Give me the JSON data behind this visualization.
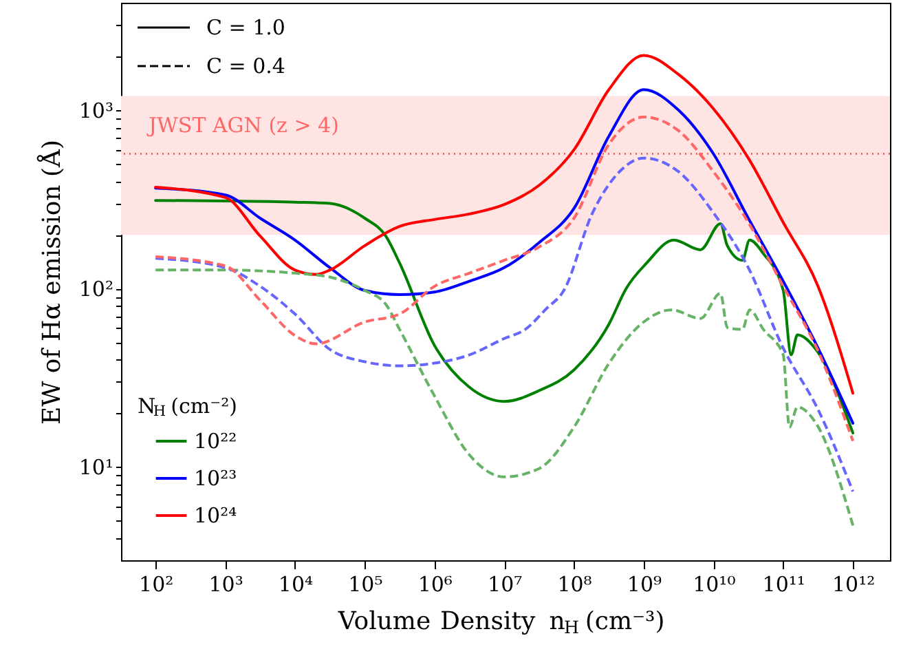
{
  "chart_data": {
    "type": "line",
    "xlabel": "Volume Density n$_{H}$ (cm⁻³)",
    "ylabel": "EW of Hα emission (Å)",
    "legend_title": "N$_{H}$ (cm⁻²)",
    "legend": "bottom left",
    "annotations": [
      "C = 1.0",
      "C = 0.4"
    ],
    "log": "xy",
    "grid": false,
    "xlim": [
      32,
      3400000000000.0
    ],
    "ylim": [
      3,
      4000
    ],
    "xticks": [
      {
        "value": 100.0,
        "label": "10²"
      },
      {
        "value": 1000.0,
        "label": "10³"
      },
      {
        "value": 10000.0,
        "label": "10⁴"
      },
      {
        "value": 100000.0,
        "label": "10⁵"
      },
      {
        "value": 1000000.0,
        "label": "10⁶"
      },
      {
        "value": 10000000.0,
        "label": "10⁷"
      },
      {
        "value": 100000000.0,
        "label": "10⁸"
      },
      {
        "value": 1000000000.0,
        "label": "10⁹"
      },
      {
        "value": 10000000000.0,
        "label": "10¹⁰"
      },
      {
        "value": 100000000000.0,
        "label": "10¹¹"
      },
      {
        "value": 1000000000000.0,
        "label": "10¹²"
      }
    ],
    "yticks": [
      {
        "value": 4,
        "label": null
      },
      {
        "value": 5,
        "label": null
      },
      {
        "value": 6,
        "label": null
      },
      {
        "value": 7,
        "label": null
      },
      {
        "value": 8,
        "label": null
      },
      {
        "value": 9,
        "label": null
      },
      {
        "value": 10,
        "label": "10¹"
      },
      {
        "value": 20,
        "label": null
      },
      {
        "value": 30,
        "label": null
      },
      {
        "value": 40,
        "label": null
      },
      {
        "value": 50,
        "label": null
      },
      {
        "value": 60,
        "label": null
      },
      {
        "value": 70,
        "label": null
      },
      {
        "value": 80,
        "label": null
      },
      {
        "value": 90,
        "label": null
      },
      {
        "value": 100,
        "label": "10²"
      },
      {
        "value": 200,
        "label": null
      },
      {
        "value": 300,
        "label": null
      },
      {
        "value": 400,
        "label": null
      },
      {
        "value": 500,
        "label": null
      },
      {
        "value": 600,
        "label": null
      },
      {
        "value": 700,
        "label": null
      },
      {
        "value": 800,
        "label": null
      },
      {
        "value": 900,
        "label": null
      },
      {
        "value": 1000,
        "label": "10³"
      },
      {
        "value": 2000,
        "label": null
      },
      {
        "value": 3000,
        "label": null
      }
    ],
    "bands": [
      {
        "axis": "y",
        "from": 200,
        "to": 1200,
        "label": "JWST AGN (z > 4)",
        "color": "#ffe4e4"
      }
    ],
    "ref_lines": [
      {
        "axis": "y",
        "value": 570,
        "label": null,
        "color": "#ff5555",
        "line_style": "dotted"
      }
    ],
    "series": [
      {
        "name": "10²²",
        "color": "#008000",
        "line_style": "solid",
        "x": [
          100.0,
          1000.0,
          10000.0,
          31600.0,
          100000.0,
          200000.0,
          316000.0,
          1000000.0,
          3160000.0,
          10000000.0,
          31600000.0,
          100000000.0,
          316000000.0,
          560000000.0,
          1100000000.0,
          2700000000.0,
          6500000000.0,
          12600000000.0,
          15800000000.0,
          26000000000.0,
          33000000000.0,
          52000000000.0,
          100000000000.0,
          130000000000.0,
          160000000000.0,
          295000000000.0,
          1000000000000.0
        ],
        "values": [
          312,
          310,
          305,
          300,
          248,
          197,
          139,
          48,
          28,
          23.3,
          26.8,
          35,
          63,
          100,
          139,
          187,
          165,
          231,
          174,
          144,
          187,
          157,
          98,
          42.5,
          55,
          45.6,
          15.5
        ]
      },
      {
        "name": "10²³",
        "color": "#0000ff",
        "line_style": "solid",
        "x": [
          100.0,
          1000.0,
          3160.0,
          10000.0,
          31600.0,
          100000.0,
          316000.0,
          1000000.0,
          3160000.0,
          10000000.0,
          31600000.0,
          100000000.0,
          316000000.0,
          1000000000.0,
          3160000000.0,
          10000000000.0,
          31600000000.0,
          100000000000.0,
          316000000000.0,
          1000000000000.0
        ],
        "values": [
          366,
          335,
          248,
          187,
          131,
          97.6,
          92.5,
          95.7,
          110,
          131,
          181,
          281,
          714,
          1303,
          1000,
          569,
          248,
          110,
          46.4,
          17.6
        ]
      },
      {
        "name": "10²⁴",
        "color": "#ff0000",
        "line_style": "solid",
        "x": [
          100.0,
          1000.0,
          3160.0,
          10000.0,
          20000.0,
          31600.0,
          100000.0,
          316000.0,
          1000000.0,
          3160000.0,
          10000000.0,
          31600000.0,
          100000000.0,
          316000000.0,
          1000000000.0,
          3160000000.0,
          10000000000.0,
          31600000000.0,
          100000000000.0,
          316000000000.0,
          1000000000000.0
        ],
        "values": [
          370,
          324,
          197,
          127,
          120,
          127,
          174,
          223,
          244,
          262,
          296,
          379,
          600,
          1303,
          2028,
          1585,
          1018,
          539,
          235,
          103,
          25.9
        ]
      },
      {
        "color": "#66b366",
        "line_style": "dashed",
        "x": [
          100.0,
          1000.0,
          10000.0,
          31600.0,
          100000.0,
          200000.0,
          316000.0,
          1000000.0,
          3160000.0,
          10000000.0,
          31600000.0,
          100000000.0,
          316000000.0,
          1000000000.0,
          2500000000.0,
          6500000000.0,
          12600000000.0,
          15800000000.0,
          26000000000.0,
          33000000000.0,
          52000000000.0,
          100000000000.0,
          123000000000.0,
          160000000000.0,
          295000000000.0,
          1000000000000.0
        ],
        "values": [
          127,
          127,
          122,
          116,
          97.6,
          81.7,
          59,
          25,
          11.7,
          8.8,
          9.8,
          16.7,
          38,
          65,
          76,
          68,
          94,
          60.5,
          59,
          76,
          59,
          42.5,
          16.7,
          21.7,
          17.6,
          4.7
        ]
      },
      {
        "color": "#6666ff",
        "line_style": "dashed",
        "x": [
          100.0,
          1000.0,
          3160.0,
          10000.0,
          31600.0,
          100000.0,
          316000.0,
          1000000.0,
          3160000.0,
          10000000.0,
          20000000.0,
          40000000.0,
          72000000.0,
          180000000.0,
          450000000.0,
          1000000000.0,
          3160000000.0,
          10000000000.0,
          31600000000.0,
          100000000000.0,
          316000000000.0,
          1000000000000.0
        ],
        "values": [
          148,
          131,
          103,
          72,
          45.6,
          38.9,
          36.9,
          38.2,
          42.5,
          52.5,
          59,
          77,
          98,
          260,
          452,
          539,
          452,
          266,
          131,
          46.4,
          21,
          7.3
        ]
      },
      {
        "color": "#ff6666",
        "line_style": "dashed",
        "x": [
          100.0,
          1000.0,
          3160.0,
          10000.0,
          20000.0,
          100000.0,
          316000.0,
          1000000.0,
          3160000.0,
          10000000.0,
          31600000.0,
          100000000.0,
          316000000.0,
          1000000000.0,
          3160000000.0,
          10000000000.0,
          31600000000.0,
          100000000000.0,
          316000000000.0,
          1000000000000.0
        ],
        "values": [
          151,
          134,
          86,
          54.5,
          49,
          65,
          72,
          103,
          122,
          144,
          171,
          248,
          643,
          916,
          767,
          452,
          235,
          103,
          44.7,
          14
        ]
      }
    ]
  }
}
